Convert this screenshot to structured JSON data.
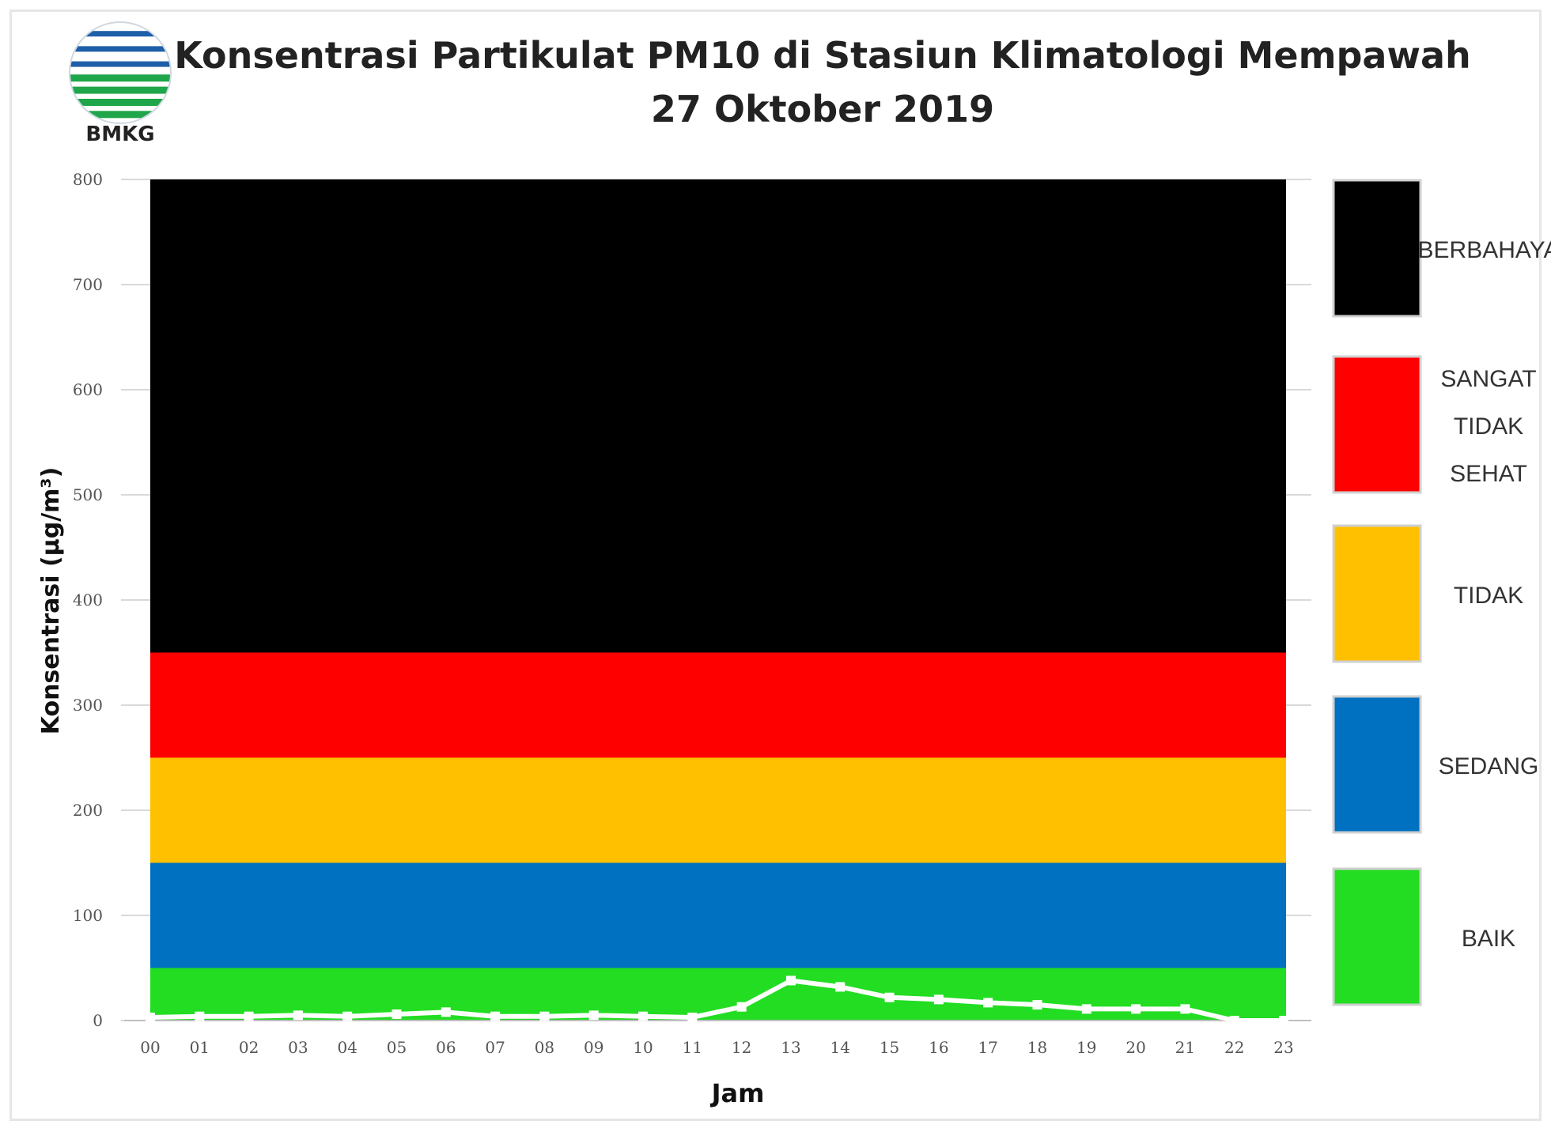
{
  "logo": {
    "text": "BMKG"
  },
  "chart_data": {
    "type": "line",
    "title": "Konsentrasi Partikulat PM10 di Stasiun Klimatologi Mempawah",
    "subtitle": "27 Oktober 2019",
    "xlabel": "Jam",
    "ylabel": "Konsentrasi (µg/m³)",
    "ylim": [
      0,
      800
    ],
    "yticks": [
      "0",
      "100",
      "200",
      "300",
      "400",
      "500",
      "600",
      "700",
      "800"
    ],
    "categories": [
      "00",
      "01",
      "02",
      "03",
      "04",
      "05",
      "06",
      "07",
      "08",
      "09",
      "10",
      "11",
      "12",
      "13",
      "14",
      "15",
      "16",
      "17",
      "18",
      "19",
      "20",
      "21",
      "22",
      "23"
    ],
    "series": [
      {
        "values": [
          3,
          4,
          4,
          5,
          4,
          6,
          8,
          4,
          4,
          5,
          4,
          3,
          13,
          38,
          32,
          22,
          20,
          17,
          15,
          11,
          11,
          11,
          0,
          0
        ],
        "color": "#ffffff"
      }
    ],
    "bands": [
      {
        "label": "BAIK",
        "from": 0,
        "to": 50,
        "color": "#22dd22"
      },
      {
        "label": "SEDANG",
        "from": 50,
        "to": 150,
        "color": "#0070c0"
      },
      {
        "label": "TIDAK",
        "from": 150,
        "to": 250,
        "color": "#ffc000"
      },
      {
        "label": "SANGAT TIDAK SEHAT",
        "from": 250,
        "to": 350,
        "color": "#ff0000"
      },
      {
        "label": "BERBAHAYA",
        "from": 350,
        "to": 800,
        "color": "#000000"
      }
    ],
    "legend": [
      {
        "label_lines": [
          "BERBAHAYA"
        ],
        "color": "#000000"
      },
      {
        "label_lines": [
          "SANGAT",
          "TIDAK",
          "SEHAT"
        ],
        "color": "#ff0000"
      },
      {
        "label_lines": [
          "TIDAK"
        ],
        "color": "#ffc000"
      },
      {
        "label_lines": [
          "SEDANG"
        ],
        "color": "#0070c0"
      },
      {
        "label_lines": [
          "BAIK"
        ],
        "color": "#22dd22"
      }
    ],
    "legend_position": "right",
    "grid": true
  }
}
